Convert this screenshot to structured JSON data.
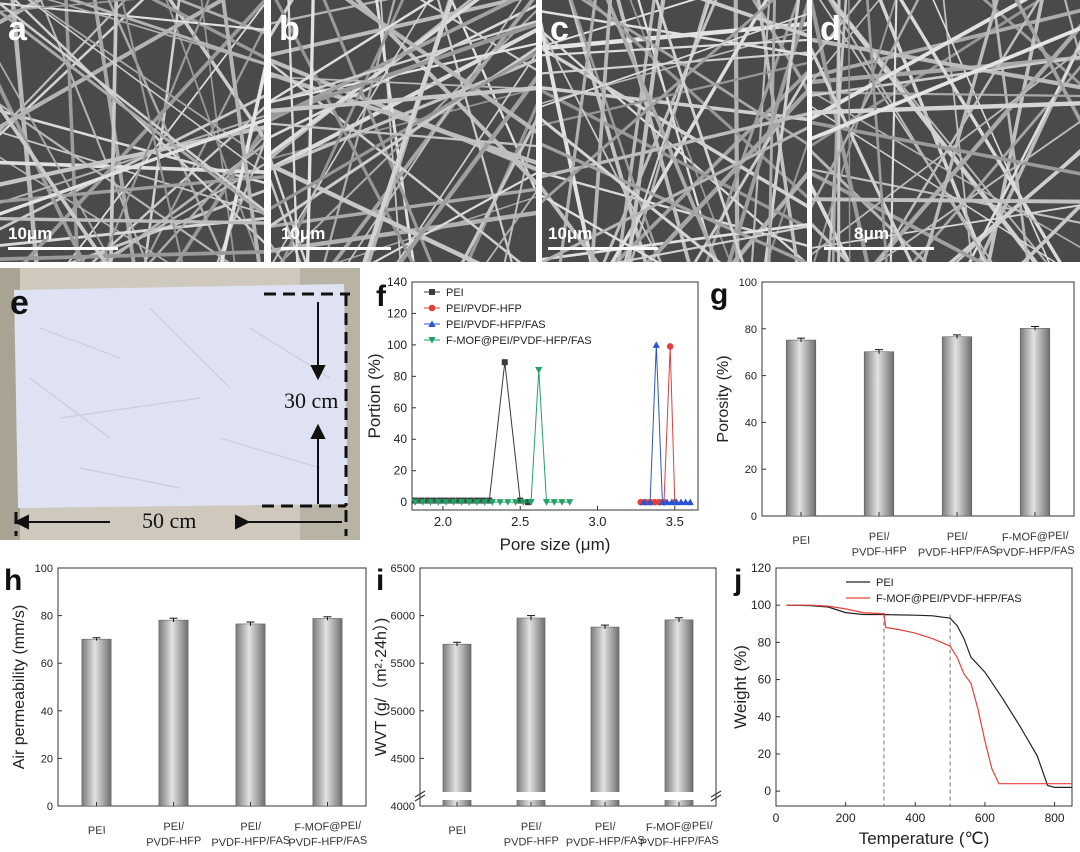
{
  "sem_panels": [
    {
      "label": "a",
      "scale": "10μm"
    },
    {
      "label": "b",
      "scale": "10μm"
    },
    {
      "label": "c",
      "scale": "10μm"
    },
    {
      "label": "d",
      "scale": "8μm"
    }
  ],
  "photo_panel": {
    "label": "e",
    "height_label": "30 cm",
    "width_label": "50 cm"
  },
  "chart_data": [
    {
      "panel": "f",
      "type": "line",
      "xlabel": "Pore size (μm)",
      "ylabel": "Portion (%)",
      "xlim": [
        1.8,
        3.65
      ],
      "ylim": [
        -5,
        140
      ],
      "xticks": [
        2.0,
        2.5,
        3.0,
        3.5
      ],
      "xtick_labels": [
        "2.0",
        "2.5",
        "3.0",
        "3.5"
      ],
      "yticks": [
        0,
        20,
        40,
        60,
        80,
        100,
        120,
        140
      ],
      "legend_position": "top-left",
      "series": [
        {
          "name": "PEI",
          "color": "#3a3a3a",
          "marker": "square",
          "x": [
            1.82,
            1.86,
            1.9,
            1.94,
            1.98,
            2.02,
            2.06,
            2.1,
            2.14,
            2.18,
            2.22,
            2.26,
            2.3,
            2.4,
            2.5,
            2.55
          ],
          "y": [
            1,
            1,
            1,
            1,
            1,
            1,
            1,
            1,
            1,
            1,
            1,
            1,
            1,
            89,
            1,
            0
          ]
        },
        {
          "name": "PEI/PVDF-HFP",
          "color": "#e0413a",
          "marker": "circle",
          "x": [
            3.28,
            3.31,
            3.34,
            3.37,
            3.4,
            3.43,
            3.47,
            3.5
          ],
          "y": [
            0,
            0,
            0,
            0,
            0,
            0,
            99,
            0
          ]
        },
        {
          "name": "PEI/PVDF-HFP/FAS",
          "color": "#2a55d0",
          "marker": "triangle-up",
          "x": [
            3.3,
            3.34,
            3.38,
            3.42,
            3.45,
            3.48,
            3.51,
            3.54,
            3.57,
            3.6
          ],
          "y": [
            0,
            0,
            100,
            0,
            0,
            0,
            0,
            0,
            0,
            0
          ]
        },
        {
          "name": "F-MOF@PEI/PVDF-HFP/FAS",
          "color": "#22a266",
          "marker": "triangle-down",
          "x": [
            1.82,
            1.87,
            1.92,
            1.97,
            2.02,
            2.07,
            2.12,
            2.17,
            2.22,
            2.27,
            2.32,
            2.37,
            2.42,
            2.47,
            2.52,
            2.57,
            2.62,
            2.67,
            2.72,
            2.77,
            2.82
          ],
          "y": [
            0,
            0,
            0,
            0,
            0,
            0,
            0,
            0,
            0,
            0,
            0,
            0,
            0,
            0,
            0,
            0,
            84,
            0,
            0,
            0,
            0
          ]
        }
      ]
    },
    {
      "panel": "g",
      "type": "bar",
      "xlabel": "",
      "ylabel": "Porosity (%)",
      "ylim": [
        0,
        100
      ],
      "yticks": [
        0,
        20,
        40,
        60,
        80,
        100
      ],
      "categories": [
        [
          "PEI"
        ],
        [
          "PEI/",
          "PVDF-HFP"
        ],
        [
          "PEI/",
          "PVDF-HFP/FAS"
        ],
        [
          "F-MOF@PEI/",
          "PVDF-HFP/FAS"
        ]
      ],
      "values": [
        75.2,
        70.2,
        76.6,
        80.2
      ],
      "errors": [
        0.8,
        0.9,
        0.8,
        0.8
      ]
    },
    {
      "panel": "h",
      "type": "bar",
      "xlabel": "",
      "ylabel": "Air permeability (mm/s)",
      "ylim": [
        0,
        100
      ],
      "yticks": [
        0,
        20,
        40,
        60,
        80,
        100
      ],
      "categories": [
        [
          "PEI"
        ],
        [
          "PEI/",
          "PVDF-HFP"
        ],
        [
          "PEI/",
          "PVDF-HFP/FAS"
        ],
        [
          "F-MOF@PEI/",
          "PVDF-HFP/FAS"
        ]
      ],
      "values": [
        70.1,
        78.1,
        76.5,
        78.8
      ],
      "errors": [
        0.6,
        0.8,
        0.8,
        0.7
      ]
    },
    {
      "panel": "i",
      "type": "bar",
      "xlabel": "",
      "ylabel": "WVT (g/（m²·24h）)",
      "ylim": [
        4000,
        6500
      ],
      "axis_break_at": 4000,
      "yticks": [
        4000,
        4500,
        5000,
        5500,
        6000,
        6500
      ],
      "categories": [
        [
          "PEI"
        ],
        [
          "PEI/",
          "PVDF-HFP"
        ],
        [
          "PEI/",
          "PVDF-HFP/FAS"
        ],
        [
          "F-MOF@PEI/",
          "PVDF-HFP/FAS"
        ]
      ],
      "values": [
        5700,
        5975,
        5880,
        5955
      ],
      "errors": [
        20,
        25,
        20,
        22
      ]
    },
    {
      "panel": "j",
      "type": "line",
      "xlabel": "Temperature (℃)",
      "ylabel": "Weight (%)",
      "xlim": [
        0,
        850
      ],
      "ylim": [
        -8,
        120
      ],
      "xticks": [
        0,
        200,
        400,
        600,
        800
      ],
      "yticks": [
        0,
        20,
        40,
        60,
        80,
        100,
        120
      ],
      "reference_lines_x": [
        310,
        500
      ],
      "legend_position": "top-right",
      "series": [
        {
          "name": "PEI",
          "color": "#222222",
          "x": [
            30,
            100,
            150,
            200,
            250,
            300,
            350,
            400,
            450,
            500,
            520,
            540,
            560,
            600,
            650,
            700,
            750,
            780,
            800,
            850
          ],
          "y": [
            100,
            99.8,
            99,
            96,
            95,
            95,
            94.8,
            94.6,
            94.3,
            93,
            89,
            82,
            72,
            64,
            50,
            35,
            19,
            3,
            2,
            2
          ]
        },
        {
          "name": "F-MOF@PEI/PVDF-HFP/FAS",
          "color": "#e8403a",
          "x": [
            30,
            100,
            150,
            200,
            250,
            300,
            310,
            315,
            350,
            400,
            450,
            500,
            520,
            540,
            560,
            580,
            600,
            620,
            640,
            700,
            850
          ],
          "y": [
            100,
            100,
            99.5,
            98,
            96,
            95.5,
            95.5,
            88,
            87,
            85,
            82,
            78,
            72,
            63,
            58,
            44,
            27,
            12,
            4,
            4,
            4
          ]
        }
      ]
    }
  ]
}
